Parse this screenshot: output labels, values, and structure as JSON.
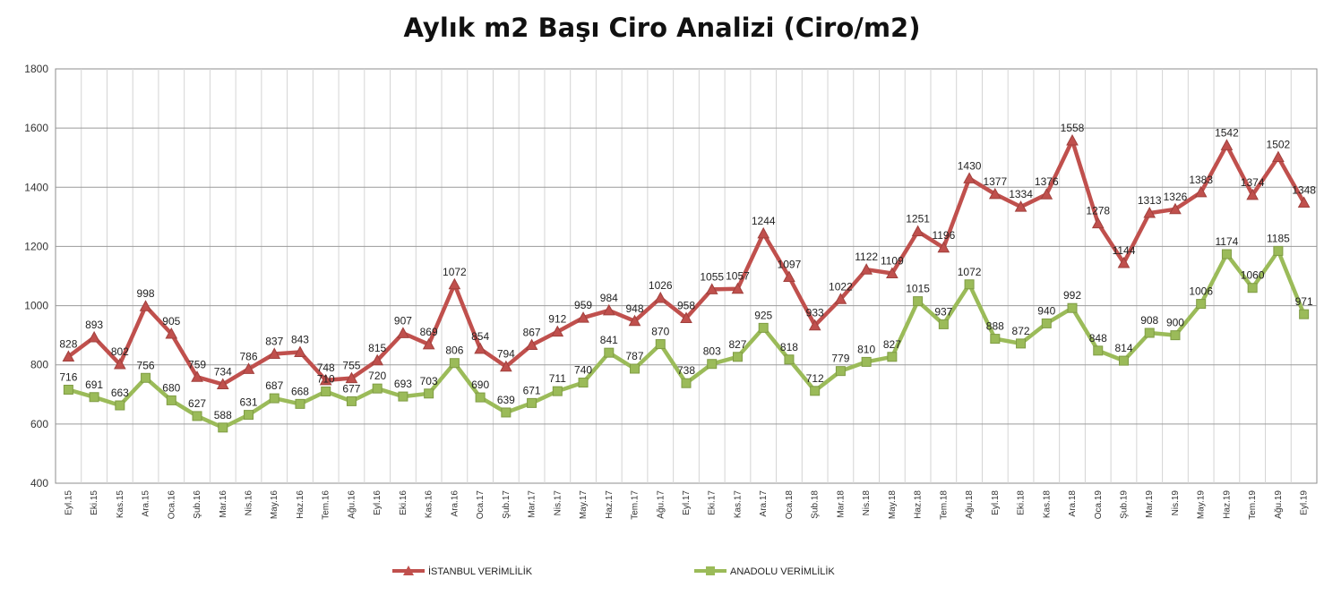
{
  "chart_data": {
    "type": "line",
    "title": "Aylık m2 Başı Ciro Analizi (Ciro/m2)",
    "xlabel": "",
    "ylabel": "",
    "ylim": [
      400,
      1800
    ],
    "yticks": [
      400,
      600,
      800,
      1000,
      1200,
      1400,
      1600,
      1800
    ],
    "grid": true,
    "legend_position": "bottom",
    "categories": [
      "Eyl.15",
      "Eki.15",
      "Kas.15",
      "Ara.15",
      "Oca.16",
      "Şub.16",
      "Mar.16",
      "Nis.16",
      "May.16",
      "Haz.16",
      "Tem.16",
      "Ağu.16",
      "Eyl.16",
      "Eki.16",
      "Kas.16",
      "Ara.16",
      "Oca.17",
      "Şub.17",
      "Mar.17",
      "Nis.17",
      "May.17",
      "Haz.17",
      "Tem.17",
      "Ağu.17",
      "Eyl.17",
      "Eki.17",
      "Kas.17",
      "Ara.17",
      "Oca.18",
      "Şub.18",
      "Mar.18",
      "Nis.18",
      "May.18",
      "Haz.18",
      "Tem.18",
      "Ağu.18",
      "Eyl.18",
      "Eki.18",
      "Kas.18",
      "Ara.18",
      "Oca.19",
      "Şub.19",
      "Mar.19",
      "Nis.19",
      "May.19",
      "Haz.19",
      "Tem.19",
      "Ağu.19",
      "Eyl.19"
    ],
    "series": [
      {
        "name": "İSTANBUL VERİMLİLİK",
        "color": "#c0504d",
        "marker": "triangle",
        "values": [
          828,
          893,
          802,
          998,
          905,
          759,
          734,
          786,
          837,
          843,
          748,
          755,
          815,
          907,
          869,
          1072,
          854,
          794,
          867,
          912,
          959,
          984,
          948,
          1026,
          958,
          1055,
          1057,
          1244,
          1097,
          933,
          1022,
          1122,
          1109,
          1251,
          1196,
          1430,
          1377,
          1334,
          1376,
          1558,
          1278,
          1144,
          1313,
          1326,
          1383,
          1542,
          1374,
          1502,
          1348
        ]
      },
      {
        "name": "ANADOLU VERİMLİLİK",
        "color": "#9bbb59",
        "marker": "square",
        "values": [
          716,
          691,
          663,
          756,
          680,
          627,
          588,
          631,
          687,
          668,
          710,
          677,
          720,
          693,
          703,
          806,
          690,
          639,
          671,
          711,
          740,
          841,
          787,
          870,
          738,
          803,
          827,
          925,
          818,
          712,
          779,
          810,
          827,
          1015,
          937,
          1072,
          888,
          872,
          940,
          992,
          848,
          814,
          908,
          900,
          1006,
          1174,
          1060,
          1185,
          971
        ]
      }
    ]
  }
}
